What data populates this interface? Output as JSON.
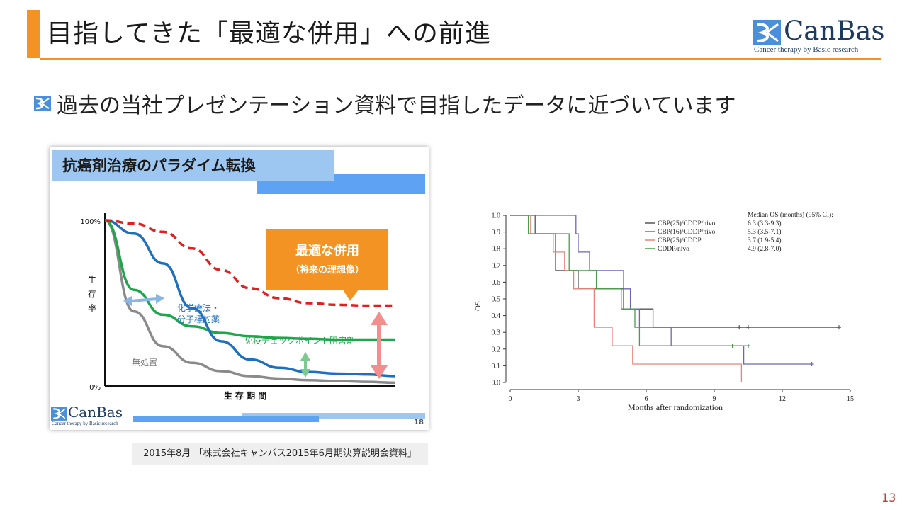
{
  "slide": {
    "title": "目指してきた「最適な併用」への前進",
    "subtitle": "過去の当社プレゼンテーション資料で目指したデータに近づいています",
    "page_number": "13",
    "accent_color": "#f39323"
  },
  "logo": {
    "name": "CanBas",
    "tagline": "Cancer therapy by Basic research"
  },
  "past_slide": {
    "header": "抗癌剤治療のパラダイム転換",
    "page_number": "18",
    "caption": "2015年8月 「株式会社キャンバス2015年6月期決算説明会資料」",
    "callout_title": "最適な併用",
    "callout_sub": "（将来の理想像）",
    "chart_data": {
      "type": "line",
      "title": "",
      "xlabel": "生 存 期 間",
      "ylabel": "生\n存\n率",
      "y_ticks": [
        "100%",
        "0%"
      ],
      "ylim": [
        0,
        100
      ],
      "x": [
        0,
        10,
        20,
        30,
        40,
        50,
        60,
        70,
        80,
        90,
        100
      ],
      "series": [
        {
          "name": "最適な併用",
          "color": "#e0201f",
          "style": "dashed",
          "values": [
            100,
            98,
            93,
            83,
            70,
            59,
            53,
            50,
            49,
            48.5,
            48.5
          ]
        },
        {
          "name": "化学療法・分子標的薬",
          "color": "#1f6fbf",
          "values": [
            100,
            92,
            74,
            47,
            27,
            16,
            11,
            8.5,
            7.5,
            7,
            6
          ]
        },
        {
          "name": "免疫チェックポイント阻害剤",
          "color": "#1ea74a",
          "values": [
            100,
            58,
            43,
            36,
            32,
            30,
            29,
            28.5,
            28,
            28,
            28
          ]
        },
        {
          "name": "無処置",
          "color": "#8a8a8a",
          "values": [
            100,
            45,
            24,
            14,
            9,
            6,
            4.5,
            3.5,
            3,
            2.5,
            2
          ]
        }
      ]
    }
  },
  "km_chart": {
    "chart_data": {
      "type": "line",
      "step": true,
      "xlabel": "Months after randomization",
      "ylabel": "OS",
      "xlim": [
        0,
        15
      ],
      "ylim": [
        0,
        1.0
      ],
      "x_ticks": [
        "0",
        "3",
        "6",
        "9",
        "12",
        "15"
      ],
      "y_ticks": [
        "0.0",
        "0.1",
        "0.2",
        "0.3",
        "0.4",
        "0.5",
        "0.6",
        "0.7",
        "0.8",
        "0.9",
        "1.0"
      ],
      "legend_title": "Median OS (months) (95% CI):",
      "legend_position": "top-right",
      "series": [
        {
          "name": "CBP(25)/CDDP/nivo",
          "median": "6.3 (3.3-9.3)",
          "color": "#555555",
          "steps": [
            [
              0,
              1.0
            ],
            [
              1.1,
              1.0
            ],
            [
              1.1,
              0.89
            ],
            [
              2.0,
              0.89
            ],
            [
              2.0,
              0.67
            ],
            [
              3.0,
              0.67
            ],
            [
              3.0,
              0.56
            ],
            [
              5.0,
              0.56
            ],
            [
              5.0,
              0.44
            ],
            [
              6.3,
              0.44
            ],
            [
              6.3,
              0.33
            ],
            [
              14.5,
              0.33
            ]
          ],
          "censored": [
            [
              10.1,
              0.33
            ],
            [
              10.5,
              0.33
            ],
            [
              14.5,
              0.33
            ]
          ]
        },
        {
          "name": "CBP(16)/CDDP/nivo",
          "median": "5.3 (3.5-7.1)",
          "color": "#6b67b8",
          "steps": [
            [
              0,
              1.0
            ],
            [
              2.9,
              1.0
            ],
            [
              2.9,
              0.89
            ],
            [
              3.0,
              0.89
            ],
            [
              3.0,
              0.78
            ],
            [
              3.5,
              0.78
            ],
            [
              3.5,
              0.67
            ],
            [
              5.0,
              0.67
            ],
            [
              5.0,
              0.56
            ],
            [
              5.3,
              0.56
            ],
            [
              5.3,
              0.44
            ],
            [
              5.7,
              0.44
            ],
            [
              5.7,
              0.33
            ],
            [
              7.1,
              0.33
            ],
            [
              7.1,
              0.22
            ],
            [
              10.3,
              0.22
            ],
            [
              10.3,
              0.11
            ],
            [
              13.3,
              0.11
            ]
          ],
          "censored": [
            [
              13.3,
              0.11
            ]
          ]
        },
        {
          "name": "CBP(25)/CDDP",
          "median": "3.7 (1.9-5.4)",
          "color": "#e8837a",
          "steps": [
            [
              0,
              1.0
            ],
            [
              0.9,
              1.0
            ],
            [
              0.9,
              0.89
            ],
            [
              1.9,
              0.89
            ],
            [
              1.9,
              0.78
            ],
            [
              2.4,
              0.78
            ],
            [
              2.4,
              0.67
            ],
            [
              2.8,
              0.67
            ],
            [
              2.8,
              0.56
            ],
            [
              3.7,
              0.56
            ],
            [
              3.7,
              0.33
            ],
            [
              4.5,
              0.33
            ],
            [
              4.5,
              0.22
            ],
            [
              5.4,
              0.22
            ],
            [
              5.4,
              0.11
            ],
            [
              10.2,
              0.11
            ],
            [
              10.2,
              0.0
            ]
          ],
          "censored": []
        },
        {
          "name": "CDDP/nivo",
          "median": "4.9 (2.8-7.0)",
          "color": "#4a9b4a",
          "steps": [
            [
              0,
              1.0
            ],
            [
              0.8,
              1.0
            ],
            [
              0.8,
              0.89
            ],
            [
              2.6,
              0.89
            ],
            [
              2.6,
              0.67
            ],
            [
              3.8,
              0.67
            ],
            [
              3.8,
              0.56
            ],
            [
              4.9,
              0.56
            ],
            [
              4.9,
              0.44
            ],
            [
              5.5,
              0.44
            ],
            [
              5.5,
              0.33
            ],
            [
              5.7,
              0.33
            ],
            [
              5.7,
              0.22
            ],
            [
              10.5,
              0.22
            ]
          ],
          "censored": [
            [
              9.8,
              0.22
            ],
            [
              10.5,
              0.22
            ]
          ]
        }
      ]
    }
  }
}
